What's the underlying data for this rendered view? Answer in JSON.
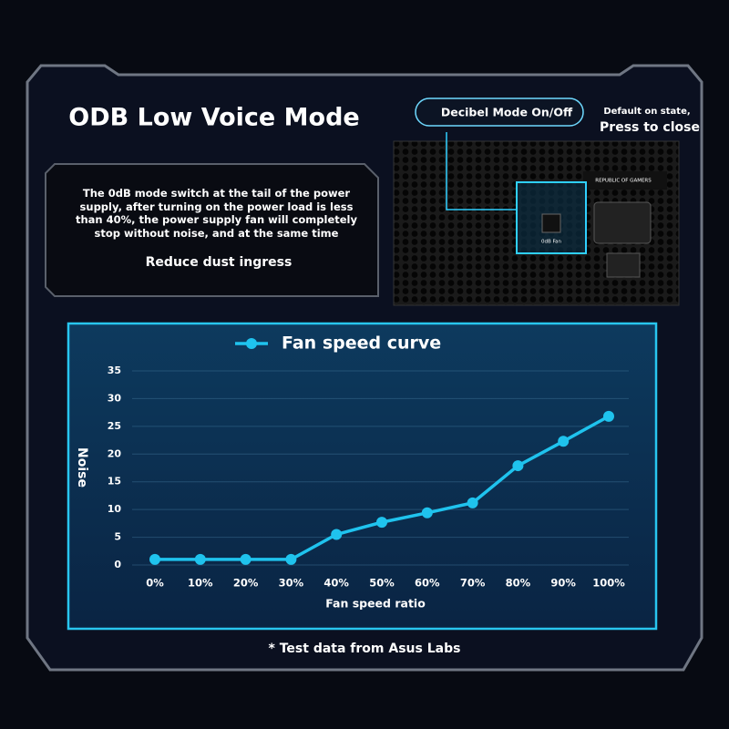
{
  "header": {
    "title": "ODB Low Voice Mode"
  },
  "info_box": {
    "description": "The 0dB mode switch at the tail of the power supply, after turning on the power load is less than 40%, the power supply fan will completely stop without noise, and at the same time",
    "benefit": "Reduce dust ingress"
  },
  "switch_callout": {
    "label": "Decibel Mode On/Off",
    "note_line1": "Default on state,",
    "note_line2": "Press to close"
  },
  "product_labels": {
    "brand": "REPUBLIC OF GAMERS",
    "switch": "0dB Fan"
  },
  "chart_data": {
    "type": "line",
    "x_label": "Fan speed ratio",
    "y_label": "Noise",
    "categories": [
      "0%",
      "10%",
      "20%",
      "30%",
      "40%",
      "50%",
      "60%",
      "70%",
      "80%",
      "90%",
      "100%"
    ],
    "series": [
      {
        "name": "Fan speed curve",
        "color": "#1fc3ee",
        "values": [
          1,
          1,
          1,
          1,
          5.5,
          7.7,
          9.4,
          11.2,
          17.9,
          22.3,
          26.8
        ]
      }
    ],
    "ylim": [
      0,
      35
    ],
    "yticks": [
      0,
      5,
      10,
      15,
      20,
      25,
      30,
      35
    ],
    "grid": true,
    "legend": "top"
  },
  "footnote": "* Test data from Asus Labs"
}
